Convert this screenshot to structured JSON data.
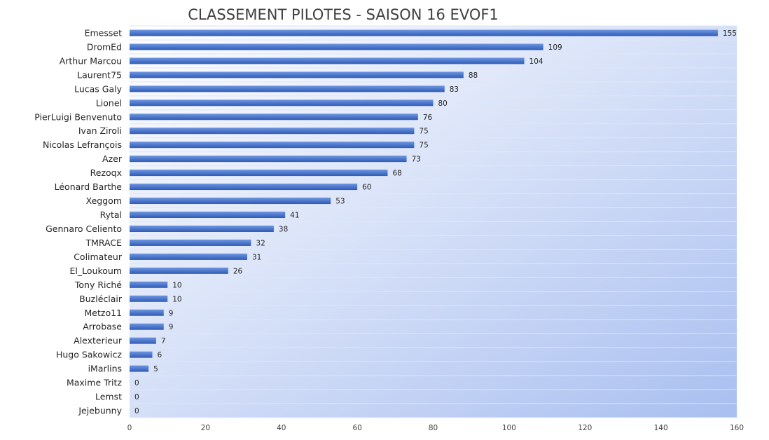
{
  "chart_data": {
    "type": "bar",
    "orientation": "horizontal",
    "title": "CLASSEMENT PILOTES - SAISON 16   EVOF1",
    "categories": [
      "Emesset",
      "DromEd",
      "Arthur Marcou",
      "Laurent75",
      "Lucas Galy",
      "Lionel",
      "PierLuigi Benvenuto",
      "Ivan Ziroli",
      "Nicolas Lefrançois",
      "Azer",
      "Rezoqx",
      "Léonard Barthe",
      "Xeggom",
      "Rytal",
      "Gennaro Celiento",
      "TMRACE",
      "Colimateur",
      "El_Loukoum",
      "Tony Riché",
      "Buzléclair",
      "Metzo11",
      "Arrobase",
      "Alexterieur",
      "Hugo Sakowicz",
      "iMarlins",
      "Maxime Tritz",
      "Lemst",
      "Jejebunny"
    ],
    "values": [
      155,
      109,
      104,
      88,
      83,
      80,
      76,
      75,
      75,
      73,
      68,
      60,
      53,
      41,
      38,
      32,
      31,
      26,
      10,
      10,
      9,
      9,
      7,
      6,
      5,
      0,
      0,
      0
    ],
    "xlim": [
      0,
      160
    ],
    "xticks": [
      0,
      20,
      40,
      60,
      80,
      100,
      120,
      140,
      160
    ],
    "xlabel": "",
    "ylabel": "",
    "grid": "horizontal",
    "legend": "none",
    "colors": {
      "bar_light": "#6f96e0",
      "bar_dark": "#2f5bb7",
      "plot_top": "#ffffff",
      "plot_bottom": "#a9bff0",
      "grid": "#e0e6f2"
    }
  }
}
